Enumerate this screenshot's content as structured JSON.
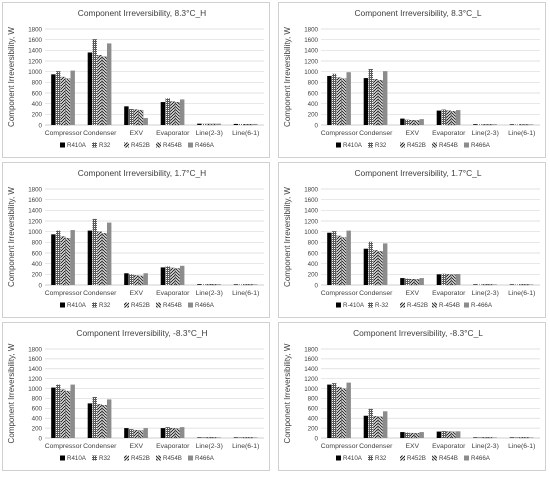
{
  "colors": {
    "R410A": "#000000",
    "R32": "#4a4a4a",
    "R452B": "#1a1a1a",
    "R454B": "#2a2a2a",
    "R466A": "#8c8c8c",
    "grid": "#d9d9d9",
    "border": "#d0d0d0"
  },
  "chart_data": [
    {
      "type": "bar",
      "title": "Component Irreversibility, 8.3°C_H",
      "ylabel": "Component Irreversibility, W",
      "ylim": [
        0,
        1800
      ],
      "yticks": [
        0,
        200,
        400,
        600,
        800,
        1000,
        1200,
        1400,
        1600,
        1800
      ],
      "categories": [
        "Compressor",
        "Condenser",
        "EXV",
        "Evaporator",
        "Line(2-3)",
        "Line(6-1)"
      ],
      "legend_position": "bottom",
      "series": [
        {
          "name": "R410A",
          "values": [
            950,
            1360,
            350,
            430,
            25,
            20
          ]
        },
        {
          "name": "R32",
          "values": [
            1010,
            1610,
            300,
            500,
            22,
            18
          ]
        },
        {
          "name": "R452B",
          "values": [
            900,
            1310,
            290,
            440,
            20,
            17
          ]
        },
        {
          "name": "R454B",
          "values": [
            870,
            1280,
            280,
            430,
            20,
            17
          ]
        },
        {
          "name": "R466A",
          "values": [
            1020,
            1530,
            130,
            480,
            25,
            20
          ]
        }
      ]
    },
    {
      "type": "bar",
      "title": "Component Irreversibility, 8.3°C_L",
      "ylabel": "Component Irreversibility, W",
      "ylim": [
        0,
        1800
      ],
      "yticks": [
        0,
        200,
        400,
        600,
        800,
        1000,
        1200,
        1400,
        1600,
        1800
      ],
      "categories": [
        "Compressor",
        "Condenser",
        "EXV",
        "Evaporator",
        "Line(2-3)",
        "Line(6-1)"
      ],
      "legend_position": "bottom",
      "series": [
        {
          "name": "R410A",
          "values": [
            920,
            880,
            120,
            270,
            15,
            12
          ]
        },
        {
          "name": "R32",
          "values": [
            960,
            1050,
            100,
            290,
            14,
            11
          ]
        },
        {
          "name": "R452B",
          "values": [
            890,
            860,
            90,
            270,
            13,
            10
          ]
        },
        {
          "name": "R454B",
          "values": [
            870,
            840,
            85,
            260,
            13,
            10
          ]
        },
        {
          "name": "R466A",
          "values": [
            990,
            1010,
            110,
            280,
            15,
            12
          ]
        }
      ]
    },
    {
      "type": "bar",
      "title": "Component Irreversibility, 1.7°C_H",
      "ylabel": "Component Irreversibility, W",
      "ylim": [
        0,
        1800
      ],
      "yticks": [
        0,
        200,
        400,
        600,
        800,
        1000,
        1200,
        1400,
        1600,
        1800
      ],
      "categories": [
        "Compressor",
        "Condenser",
        "EXV",
        "Evaporator",
        "Line(2-3)",
        "Line(6-1)"
      ],
      "legend_position": "bottom",
      "series": [
        {
          "name": "R410A",
          "values": [
            950,
            1020,
            220,
            330,
            15,
            12
          ]
        },
        {
          "name": "R32",
          "values": [
            1020,
            1240,
            200,
            350,
            14,
            11
          ]
        },
        {
          "name": "R452B",
          "values": [
            910,
            1000,
            180,
            320,
            13,
            10
          ]
        },
        {
          "name": "R454B",
          "values": [
            880,
            970,
            170,
            310,
            13,
            10
          ]
        },
        {
          "name": "R466A",
          "values": [
            1030,
            1170,
            220,
            360,
            15,
            12
          ]
        }
      ]
    },
    {
      "type": "bar",
      "title": "Component Irreversibility, 1.7°C_L",
      "ylabel": "Component Irreversibility, W",
      "ylim": [
        0,
        1800
      ],
      "yticks": [
        0,
        200,
        400,
        600,
        800,
        1000,
        1200,
        1400,
        1600,
        1800
      ],
      "categories": [
        "Compressor",
        "Condenser",
        "EXV",
        "Evaporator",
        "Line(2-3)",
        "Line(6-1)"
      ],
      "legend_position": "bottom",
      "series": [
        {
          "name": "R-410A",
          "values": [
            980,
            680,
            130,
            200,
            12,
            10
          ]
        },
        {
          "name": "R-32",
          "values": [
            1010,
            810,
            120,
            210,
            11,
            9
          ]
        },
        {
          "name": "R-452B",
          "values": [
            920,
            650,
            110,
            200,
            10,
            9
          ]
        },
        {
          "name": "R-454B",
          "values": [
            890,
            630,
            105,
            195,
            10,
            9
          ]
        },
        {
          "name": "R-466A",
          "values": [
            1020,
            780,
            130,
            205,
            12,
            10
          ]
        }
      ]
    },
    {
      "type": "bar",
      "title": "Component Irreversibility, -8.3°C_H",
      "ylabel": "Component Irreversibility, W",
      "ylim": [
        0,
        1800
      ],
      "yticks": [
        0,
        200,
        400,
        600,
        800,
        1000,
        1200,
        1400,
        1600,
        1800
      ],
      "categories": [
        "Compressor",
        "Condenser",
        "EXV",
        "Evaporator",
        "Line(2-3)",
        "Line(6-1)"
      ],
      "legend_position": "bottom",
      "series": [
        {
          "name": "R410A",
          "values": [
            1020,
            700,
            200,
            200,
            10,
            8
          ]
        },
        {
          "name": "R32",
          "values": [
            1080,
            830,
            180,
            220,
            9,
            8
          ]
        },
        {
          "name": "R452B",
          "values": [
            980,
            680,
            160,
            200,
            8,
            7
          ]
        },
        {
          "name": "R454B",
          "values": [
            950,
            660,
            150,
            190,
            8,
            7
          ]
        },
        {
          "name": "R466A",
          "values": [
            1080,
            780,
            200,
            220,
            10,
            8
          ]
        }
      ]
    },
    {
      "type": "bar",
      "title": "Component Irreversibility, -8.3°C_L",
      "ylabel": "Component Irreversibility, W",
      "ylim": [
        0,
        1800
      ],
      "yticks": [
        0,
        200,
        400,
        600,
        800,
        1000,
        1200,
        1400,
        1600,
        1800
      ],
      "categories": [
        "Compressor",
        "Condenser",
        "EXV",
        "Evaporator",
        "Line(2-3)",
        "Line(6-1)"
      ],
      "legend_position": "bottom",
      "series": [
        {
          "name": "R410A",
          "values": [
            1080,
            450,
            120,
            130,
            8,
            6
          ]
        },
        {
          "name": "R32",
          "values": [
            1110,
            590,
            110,
            140,
            7,
            6
          ]
        },
        {
          "name": "R452B",
          "values": [
            1030,
            440,
            100,
            130,
            7,
            5
          ]
        },
        {
          "name": "R454B",
          "values": [
            1000,
            430,
            95,
            125,
            7,
            5
          ]
        },
        {
          "name": "R466A",
          "values": [
            1120,
            540,
            120,
            135,
            8,
            6
          ]
        }
      ]
    }
  ]
}
